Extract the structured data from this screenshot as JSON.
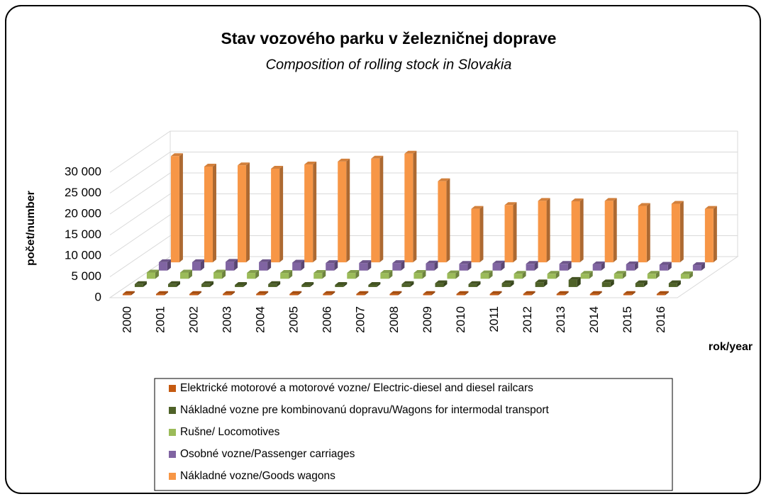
{
  "chart_data": {
    "type": "bar3d",
    "title": "Stav vozového parku v železničnej doprave",
    "subtitle": "Composition of rolling stock in Slovakia",
    "y_label": "počet/number",
    "x_label": "rok/year",
    "categories": [
      "2000",
      "2001",
      "2002",
      "2003",
      "2004",
      "2005",
      "2006",
      "2007",
      "2008",
      "2009",
      "2010",
      "2011",
      "2012",
      "2013",
      "2014",
      "2015",
      "2016"
    ],
    "series": [
      {
        "name": "Elektrické motorové a motorové vozne/ Electric-diesel and diesel railcars",
        "color": "#c55a11",
        "values": [
          300,
          300,
          300,
          300,
          300,
          300,
          300,
          300,
          300,
          300,
          300,
          300,
          300,
          300,
          300,
          300,
          300
        ]
      },
      {
        "name": "Nákladné vozne pre kombinovanú dopravu/Wagons for intermodal transport",
        "color": "#4f6228",
        "values": [
          700,
          700,
          700,
          500,
          700,
          500,
          500,
          500,
          700,
          900,
          700,
          900,
          1100,
          1700,
          1100,
          900,
          900
        ]
      },
      {
        "name": "Rušne/ Locomotives",
        "color": "#9bbb59",
        "values": [
          1500,
          1500,
          1500,
          1400,
          1400,
          1400,
          1400,
          1400,
          1400,
          1300,
          1300,
          1200,
          1200,
          1200,
          1200,
          1200,
          1100
        ]
      },
      {
        "name": "Osobné vozne/Passenger carriages",
        "color": "#8064a2",
        "values": [
          2000,
          2000,
          2100,
          2000,
          1900,
          1800,
          1800,
          1800,
          1700,
          1600,
          1700,
          1600,
          1600,
          1500,
          1500,
          1400,
          1300
        ]
      },
      {
        "name": "Nákladné vozne/Goods wagons",
        "color": "#f79646",
        "values": [
          25400,
          22900,
          23200,
          22400,
          23400,
          24100,
          24800,
          26000,
          19400,
          12800,
          13700,
          14700,
          14600,
          14700,
          13500,
          14000,
          12800
        ]
      }
    ],
    "ylim": [
      0,
      30000
    ],
    "yticks": [
      0,
      {
        "value": 5000,
        "label": "5 000"
      },
      {
        "value": 10000,
        "label": "10 000"
      },
      {
        "value": 15000,
        "label": "15 000"
      },
      {
        "value": 20000,
        "label": "20 000"
      },
      {
        "value": 25000,
        "label": "25 000"
      },
      {
        "value": 30000,
        "label": "30 000"
      }
    ],
    "grid": true
  }
}
